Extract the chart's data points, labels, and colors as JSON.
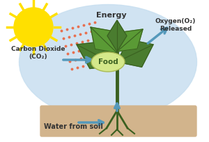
{
  "bg_color": "#ffffff",
  "ellipse_color": "#c8dff0",
  "sun_color": "#FFE000",
  "sun_ray_color": "#FFE000",
  "soil_color": "#D2B48C",
  "plant_green": "#4a7c2f",
  "plant_dark": "#3a6020",
  "leaf_light": "#5a9a35",
  "food_oval_color": "#d4e88a",
  "food_text_color": "#3a6020",
  "arrow_color": "#5599bb",
  "ray_color": "#e87050",
  "energy_text": "Energy",
  "oxygen_text": "Oxygen(O₂)\nReleased",
  "co2_text": "Carbon Dioxide\n(CO₂)",
  "water_text": "Water from soil",
  "food_text": "Food"
}
